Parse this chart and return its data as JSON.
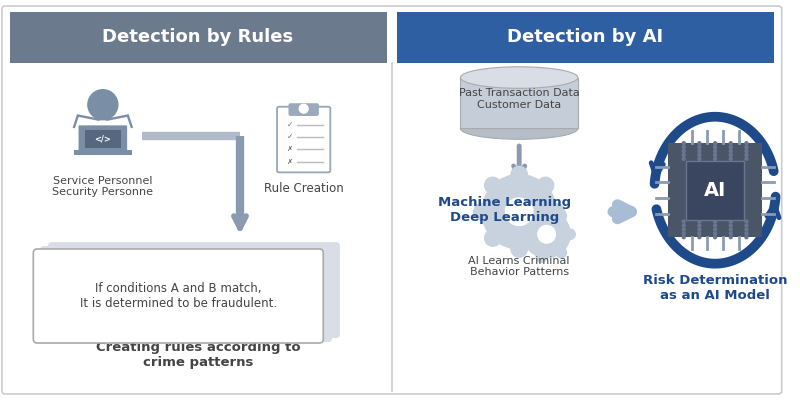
{
  "title_left": "Detection by Rules",
  "title_right": "Detection by AI",
  "title_left_bg": "#6c7a8d",
  "title_right_bg": "#2e5fa3",
  "title_text_color": "#ffffff",
  "bg_color": "#ffffff",
  "border_color": "#cccccc",
  "arrow_gray": "#8a9ab0",
  "arrow_blue_light": "#a8bdd4",
  "arrow_blue_dark": "#1e4a8a",
  "blue_text_color": "#1e4a8a",
  "dark_text_color": "#444444",
  "person_color": "#7a8fa6",
  "clipboard_color": "#9aaabb",
  "gear_color": "#c8d2de",
  "chip_body_color": "#4a5568",
  "chip_bg_color": "#3a4560",
  "label_service": "Service Personnel\nSecurity Personne",
  "label_rule": "Rule Creation",
  "label_box_text": "If conditions A and B match,\nIt is determined to be fraudulent.",
  "label_bottom_left": "Creating rules according to\ncrime patterns",
  "label_data": "Past Transaction Data\nCustomer Data",
  "label_ml": "Machine Learning\nDeep Learning",
  "label_ai_learn": "AI Learns Criminal\nBehavior Patterns",
  "label_risk": "Risk Determination\nas an AI Model"
}
